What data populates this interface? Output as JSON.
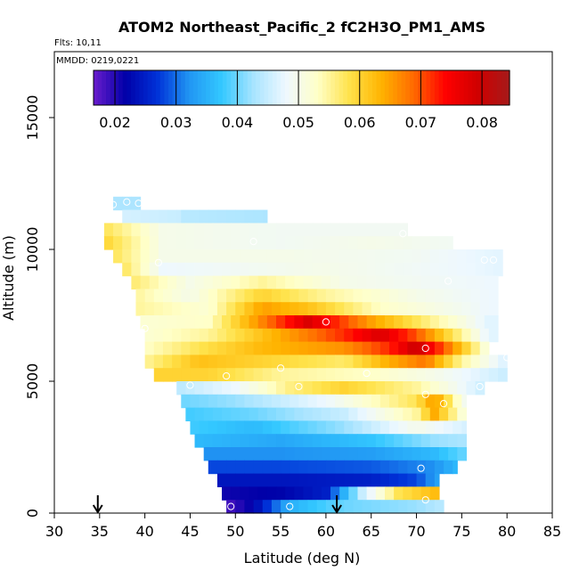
{
  "chart_data": {
    "type": "heatmap",
    "title": "ATOM2 Northeast_Pacific_2 fC2H3O_PM1_AMS",
    "flights_label": "Flts: 10,11",
    "dates_label": "MMDD: 0219,0221",
    "xlabel": "Latitude (deg N)",
    "ylabel": "Altitude (m)",
    "xlim": [
      30,
      85
    ],
    "ylim": [
      0,
      17500
    ],
    "xticks": [
      "30",
      "35",
      "40",
      "45",
      "50",
      "55",
      "60",
      "65",
      "70",
      "75",
      "80",
      "85"
    ],
    "yticks": [
      "0",
      "5000",
      "10000",
      "15000"
    ],
    "colorbar": {
      "range": [
        0.0165,
        0.0845
      ],
      "ticks": [
        "0.02",
        "0.03",
        "0.04",
        "0.05",
        "0.06",
        "0.07",
        "0.08"
      ],
      "tick_values": [
        0.02,
        0.03,
        0.04,
        0.05,
        0.06,
        0.07,
        0.08
      ],
      "stops": [
        "#6a1ccc",
        "#0000a8",
        "#0032d8",
        "#2196f3",
        "#33c8ff",
        "#a8e4ff",
        "#eef8ff",
        "#ffffc8",
        "#ffe24a",
        "#ffb300",
        "#ff6a00",
        "#ff0000",
        "#d00000",
        "#a51a1a"
      ]
    },
    "arrows_latitude": [
      34.8,
      61.2
    ],
    "profile_rows": [
      {
        "alt": 11750,
        "lat": [
          36.5,
          39.5
        ],
        "values": [
          [
            36.5,
            0.043
          ],
          [
            39.5,
            0.043
          ]
        ]
      },
      {
        "alt": 11250,
        "lat": [
          37.5,
          44
        ],
        "values": [
          [
            37.5,
            0.046
          ],
          [
            44,
            0.045
          ]
        ]
      },
      {
        "alt": 11250,
        "lat": [
          44,
          53.5
        ],
        "values": [
          [
            44,
            0.044
          ],
          [
            53.5,
            0.043
          ]
        ]
      },
      {
        "alt": 10750,
        "lat": [
          35.5,
          69
        ],
        "values": [
          [
            35.5,
            0.058
          ],
          [
            42,
            0.05
          ],
          [
            55,
            0.049
          ],
          [
            69,
            0.049
          ]
        ]
      },
      {
        "alt": 10250,
        "lat": [
          35.5,
          74
        ],
        "values": [
          [
            35.5,
            0.06
          ],
          [
            42,
            0.05
          ],
          [
            55,
            0.049
          ],
          [
            65,
            0.05
          ],
          [
            74,
            0.049
          ]
        ]
      },
      {
        "alt": 9750,
        "lat": [
          36.5,
          79.5
        ],
        "values": [
          [
            36.5,
            0.058
          ],
          [
            42,
            0.05
          ],
          [
            55,
            0.05
          ],
          [
            70,
            0.049
          ],
          [
            79.5,
            0.047
          ]
        ]
      },
      {
        "alt": 9250,
        "lat": [
          37.5,
          79.5
        ],
        "values": [
          [
            37.5,
            0.058
          ],
          [
            42,
            0.048
          ],
          [
            60,
            0.05
          ],
          [
            75,
            0.048
          ],
          [
            79.5,
            0.047
          ]
        ]
      },
      {
        "alt": 8750,
        "lat": [
          38.5,
          79
        ],
        "values": [
          [
            38.5,
            0.057
          ],
          [
            45,
            0.05
          ],
          [
            53,
            0.055
          ],
          [
            62,
            0.05
          ],
          [
            78,
            0.048
          ]
        ]
      },
      {
        "alt": 8250,
        "lat": [
          39,
          79
        ],
        "values": [
          [
            39,
            0.055
          ],
          [
            45,
            0.05
          ],
          [
            53,
            0.06
          ],
          [
            60,
            0.055
          ],
          [
            70,
            0.05
          ],
          [
            78,
            0.048
          ]
        ]
      },
      {
        "alt": 7750,
        "lat": [
          39,
          79
        ],
        "values": [
          [
            39,
            0.055
          ],
          [
            47,
            0.052
          ],
          [
            53,
            0.065
          ],
          [
            58,
            0.062
          ],
          [
            66,
            0.053
          ],
          [
            78,
            0.048
          ]
        ]
      },
      {
        "alt": 7250,
        "lat": [
          39.5,
          79
        ],
        "values": [
          [
            39.5,
            0.052
          ],
          [
            47,
            0.053
          ],
          [
            53,
            0.067
          ],
          [
            58,
            0.078
          ],
          [
            65,
            0.065
          ],
          [
            72,
            0.055
          ],
          [
            78,
            0.047
          ]
        ]
      },
      {
        "alt": 6750,
        "lat": [
          40,
          79
        ],
        "values": [
          [
            40,
            0.052
          ],
          [
            47,
            0.055
          ],
          [
            53,
            0.062
          ],
          [
            62,
            0.072
          ],
          [
            66,
            0.078
          ],
          [
            70,
            0.07
          ],
          [
            74,
            0.058
          ],
          [
            78,
            0.047
          ]
        ]
      },
      {
        "alt": 6250,
        "lat": [
          40,
          78
        ],
        "values": [
          [
            40,
            0.053
          ],
          [
            46,
            0.058
          ],
          [
            53,
            0.063
          ],
          [
            62,
            0.066
          ],
          [
            67,
            0.072
          ],
          [
            70,
            0.08
          ],
          [
            73,
            0.07
          ],
          [
            78,
            0.05
          ]
        ]
      },
      {
        "alt": 5750,
        "lat": [
          40,
          80
        ],
        "values": [
          [
            40,
            0.055
          ],
          [
            46,
            0.062
          ],
          [
            53,
            0.06
          ],
          [
            62,
            0.057
          ],
          [
            67,
            0.064
          ],
          [
            71,
            0.068
          ],
          [
            75,
            0.055
          ],
          [
            80,
            0.046
          ]
        ]
      },
      {
        "alt": 5250,
        "lat": [
          41,
          80
        ],
        "values": [
          [
            41,
            0.06
          ],
          [
            47,
            0.06
          ],
          [
            55,
            0.055
          ],
          [
            65,
            0.053
          ],
          [
            72,
            0.05
          ],
          [
            80,
            0.045
          ]
        ]
      },
      {
        "alt": 4750,
        "lat": [
          43.5,
          77.5
        ],
        "values": [
          [
            43.5,
            0.044
          ],
          [
            50,
            0.048
          ],
          [
            56,
            0.056
          ],
          [
            62,
            0.06
          ],
          [
            70,
            0.055
          ],
          [
            77.5,
            0.045
          ]
        ]
      },
      {
        "alt": 4250,
        "lat": [
          44,
          75.5
        ],
        "values": [
          [
            44,
            0.04
          ],
          [
            50,
            0.042
          ],
          [
            60,
            0.048
          ],
          [
            70,
            0.058
          ],
          [
            72,
            0.066
          ],
          [
            75.5,
            0.048
          ]
        ]
      },
      {
        "alt": 3750,
        "lat": [
          44.5,
          75.5
        ],
        "values": [
          [
            44.5,
            0.038
          ],
          [
            52,
            0.04
          ],
          [
            62,
            0.045
          ],
          [
            70,
            0.055
          ],
          [
            72,
            0.064
          ],
          [
            75.5,
            0.05
          ]
        ]
      },
      {
        "alt": 3250,
        "lat": [
          45,
          75.5
        ],
        "values": [
          [
            45,
            0.038
          ],
          [
            52,
            0.036
          ],
          [
            62,
            0.042
          ],
          [
            70,
            0.05
          ],
          [
            75.5,
            0.046
          ]
        ]
      },
      {
        "alt": 2750,
        "lat": [
          45.5,
          75.5
        ],
        "values": [
          [
            45.5,
            0.036
          ],
          [
            55,
            0.034
          ],
          [
            65,
            0.037
          ],
          [
            72,
            0.042
          ],
          [
            75.5,
            0.043
          ]
        ]
      },
      {
        "alt": 2250,
        "lat": [
          46.5,
          75.5
        ],
        "values": [
          [
            46.5,
            0.032
          ],
          [
            55,
            0.032
          ],
          [
            65,
            0.033
          ],
          [
            72,
            0.036
          ],
          [
            75.5,
            0.04
          ]
        ]
      },
      {
        "alt": 1750,
        "lat": [
          47,
          74.5
        ],
        "values": [
          [
            47,
            0.028
          ],
          [
            55,
            0.028
          ],
          [
            65,
            0.029
          ],
          [
            72,
            0.032
          ],
          [
            74.5,
            0.036
          ]
        ]
      },
      {
        "alt": 1250,
        "lat": [
          48,
          72.5
        ],
        "values": [
          [
            48,
            0.024
          ],
          [
            55,
            0.024
          ],
          [
            65,
            0.025
          ],
          [
            70,
            0.028
          ],
          [
            72.5,
            0.034
          ]
        ]
      },
      {
        "alt": 750,
        "lat": [
          48.5,
          72.5
        ],
        "values": [
          [
            48.5,
            0.021
          ],
          [
            55,
            0.022
          ],
          [
            60,
            0.025
          ],
          [
            64,
            0.045
          ],
          [
            68,
            0.058
          ],
          [
            72.5,
            0.063
          ]
        ]
      },
      {
        "alt": 250,
        "lat": [
          49,
          73
        ],
        "values": [
          [
            49,
            0.018
          ],
          [
            52,
            0.022
          ],
          [
            56,
            0.035
          ],
          [
            62,
            0.04
          ],
          [
            70,
            0.042
          ],
          [
            73,
            0.044
          ]
        ]
      }
    ],
    "sample_points": [
      {
        "lat": 36.5,
        "alt": 11700
      },
      {
        "lat": 38,
        "alt": 11800
      },
      {
        "lat": 39.3,
        "alt": 11750
      },
      {
        "lat": 41.5,
        "alt": 9500
      },
      {
        "lat": 40,
        "alt": 7000
      },
      {
        "lat": 52,
        "alt": 10300
      },
      {
        "lat": 68.5,
        "alt": 10600
      },
      {
        "lat": 73.5,
        "alt": 8800
      },
      {
        "lat": 77.5,
        "alt": 9600
      },
      {
        "lat": 78.5,
        "alt": 9600
      },
      {
        "lat": 60,
        "alt": 7250
      },
      {
        "lat": 71,
        "alt": 6250
      },
      {
        "lat": 80,
        "alt": 5900
      },
      {
        "lat": 55,
        "alt": 5500
      },
      {
        "lat": 45,
        "alt": 4850
      },
      {
        "lat": 49,
        "alt": 5200
      },
      {
        "lat": 57,
        "alt": 4800
      },
      {
        "lat": 64.5,
        "alt": 5300
      },
      {
        "lat": 71,
        "alt": 4500
      },
      {
        "lat": 77,
        "alt": 4800
      },
      {
        "lat": 73,
        "alt": 4150
      },
      {
        "lat": 70.5,
        "alt": 1700
      },
      {
        "lat": 49.5,
        "alt": 250
      },
      {
        "lat": 56,
        "alt": 250
      },
      {
        "lat": 71,
        "alt": 500
      }
    ]
  }
}
